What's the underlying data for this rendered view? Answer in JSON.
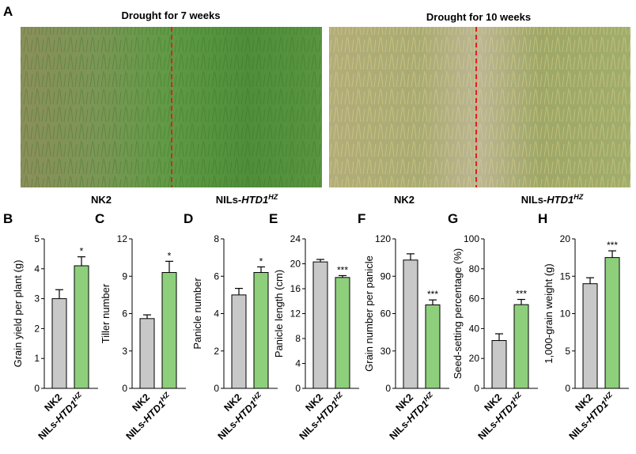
{
  "figure": {
    "panel_a": {
      "letter": "A",
      "photos": [
        {
          "title": "Drought for 7 weeks",
          "left_label": "NK2",
          "right_label_prefix": "NILs-",
          "right_label_gene": "HTD1",
          "right_label_sup": "HZ"
        },
        {
          "title": "Drought for 10 weeks",
          "left_label": "NK2",
          "right_label_prefix": "NILs-",
          "right_label_gene": "HTD1",
          "right_label_sup": "HZ"
        }
      ]
    },
    "colors": {
      "nk2_bar": "#c8c8c8",
      "nil_bar": "#8ecf7c",
      "divider": "#e02020",
      "bar_stroke": "#000000"
    }
  },
  "chart_data": [
    {
      "type": "bar",
      "panel": "B",
      "ylabel": "Grain yield per plant (g)",
      "ylim": [
        0,
        5
      ],
      "yticks": [
        0,
        1,
        2,
        3,
        4,
        5
      ],
      "categories": [
        "NK2",
        "NILs-HTD1HZ"
      ],
      "category_labels": [
        {
          "text": "NK2"
        },
        {
          "prefix": "NILs-",
          "gene": "HTD1",
          "sup": "HZ"
        }
      ],
      "values": [
        3.0,
        4.1
      ],
      "errors": [
        0.3,
        0.3
      ],
      "significance": [
        "",
        "*"
      ]
    },
    {
      "type": "bar",
      "panel": "C",
      "ylabel": "Tiller number",
      "ylim": [
        0,
        12
      ],
      "yticks": [
        0,
        3,
        6,
        9,
        12
      ],
      "categories": [
        "NK2",
        "NILs-HTD1HZ"
      ],
      "category_labels": [
        {
          "text": "NK2"
        },
        {
          "prefix": "NILs-",
          "gene": "HTD1",
          "sup": "HZ"
        }
      ],
      "values": [
        5.6,
        9.3
      ],
      "errors": [
        0.3,
        0.9
      ],
      "significance": [
        "",
        "*"
      ]
    },
    {
      "type": "bar",
      "panel": "D",
      "ylabel": "Panicle number",
      "ylim": [
        0,
        8
      ],
      "yticks": [
        0,
        2,
        4,
        6,
        8
      ],
      "categories": [
        "NK2",
        "NILs-HTD1HZ"
      ],
      "category_labels": [
        {
          "text": "NK2"
        },
        {
          "prefix": "NILs-",
          "gene": "HTD1",
          "sup": "HZ"
        }
      ],
      "values": [
        5.0,
        6.2
      ],
      "errors": [
        0.35,
        0.3
      ],
      "significance": [
        "",
        "*"
      ]
    },
    {
      "type": "bar",
      "panel": "E",
      "ylabel": "Panicle length (cm)",
      "ylim": [
        0,
        24
      ],
      "yticks": [
        0,
        4,
        8,
        12,
        16,
        20,
        24
      ],
      "categories": [
        "NK2",
        "NILs-HTD1HZ"
      ],
      "category_labels": [
        {
          "text": "NK2"
        },
        {
          "prefix": "NILs-",
          "gene": "HTD1",
          "sup": "HZ"
        }
      ],
      "values": [
        20.3,
        17.8
      ],
      "errors": [
        0.4,
        0.3
      ],
      "significance": [
        "",
        "***"
      ]
    },
    {
      "type": "bar",
      "panel": "F",
      "ylabel": "Grain number per panicle",
      "ylim": [
        0,
        120
      ],
      "yticks": [
        0,
        30,
        60,
        90,
        120
      ],
      "categories": [
        "NK2",
        "NILs-HTD1HZ"
      ],
      "category_labels": [
        {
          "text": "NK2"
        },
        {
          "prefix": "NILs-",
          "gene": "HTD1",
          "sup": "HZ"
        }
      ],
      "values": [
        103,
        67
      ],
      "errors": [
        5,
        4
      ],
      "significance": [
        "",
        "***"
      ]
    },
    {
      "type": "bar",
      "panel": "G",
      "ylabel": "Seed-setting percentage (%)",
      "ylim": [
        0,
        100
      ],
      "yticks": [
        0,
        20,
        40,
        60,
        80,
        100
      ],
      "categories": [
        "NK2",
        "NILs-HTD1HZ"
      ],
      "category_labels": [
        {
          "text": "NK2"
        },
        {
          "prefix": "NILs-",
          "gene": "HTD1",
          "sup": "HZ"
        }
      ],
      "values": [
        32,
        56
      ],
      "errors": [
        4.5,
        3.5
      ],
      "significance": [
        "",
        "***"
      ]
    },
    {
      "type": "bar",
      "panel": "H",
      "ylabel": "1,000-grain weight (g)",
      "ylim": [
        0,
        20
      ],
      "yticks": [
        0,
        5,
        10,
        15,
        20
      ],
      "categories": [
        "NK2",
        "NILs-HTD1HZ"
      ],
      "category_labels": [
        {
          "text": "NK2"
        },
        {
          "prefix": "NILs-",
          "gene": "HTD1",
          "sup": "HZ"
        }
      ],
      "values": [
        14.0,
        17.5
      ],
      "errors": [
        0.8,
        0.9
      ],
      "significance": [
        "",
        "***"
      ]
    }
  ]
}
